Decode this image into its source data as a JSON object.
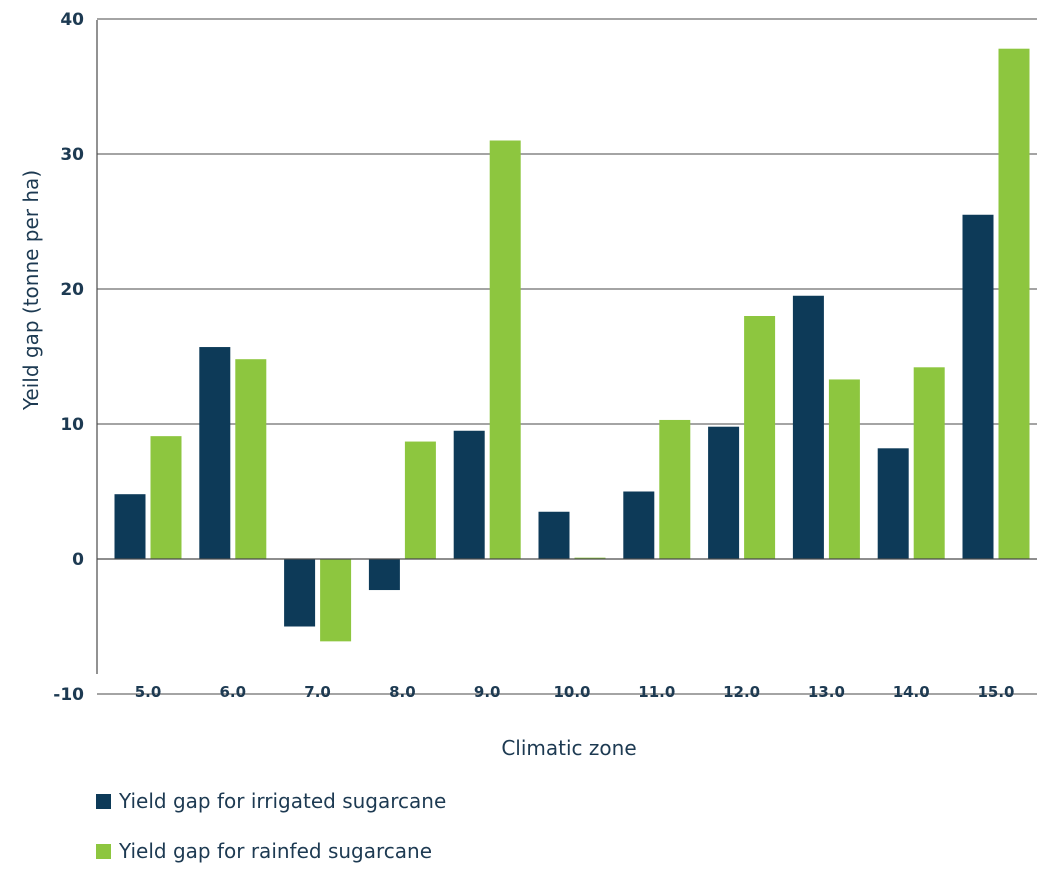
{
  "chart_data": {
    "type": "bar",
    "categories": [
      "5.0",
      "6.0",
      "7.0",
      "8.0",
      "9.0",
      "10.0",
      "11.0",
      "12.0",
      "13.0",
      "14.0",
      "15.0"
    ],
    "series": [
      {
        "name": "Yield gap for irrigated sugarcane",
        "color": "#0d3a58",
        "values": [
          4.8,
          15.7,
          -5.0,
          -2.3,
          9.5,
          3.5,
          5.0,
          9.8,
          19.5,
          8.2,
          25.5
        ]
      },
      {
        "name": "Yield gap for rainfed sugarcane",
        "color": "#8dc63f",
        "values": [
          9.1,
          14.8,
          -6.1,
          8.7,
          31.0,
          0.1,
          10.3,
          18.0,
          13.3,
          14.2,
          37.8
        ]
      }
    ],
    "xlabel": "Climatic zone",
    "ylabel": "Yeild gap (tonne per ha)",
    "ylim": [
      -8.5,
      40
    ],
    "yticks": [
      40,
      30,
      20,
      10,
      0,
      -10
    ],
    "grid": true,
    "legend_position": "bottom-left"
  }
}
